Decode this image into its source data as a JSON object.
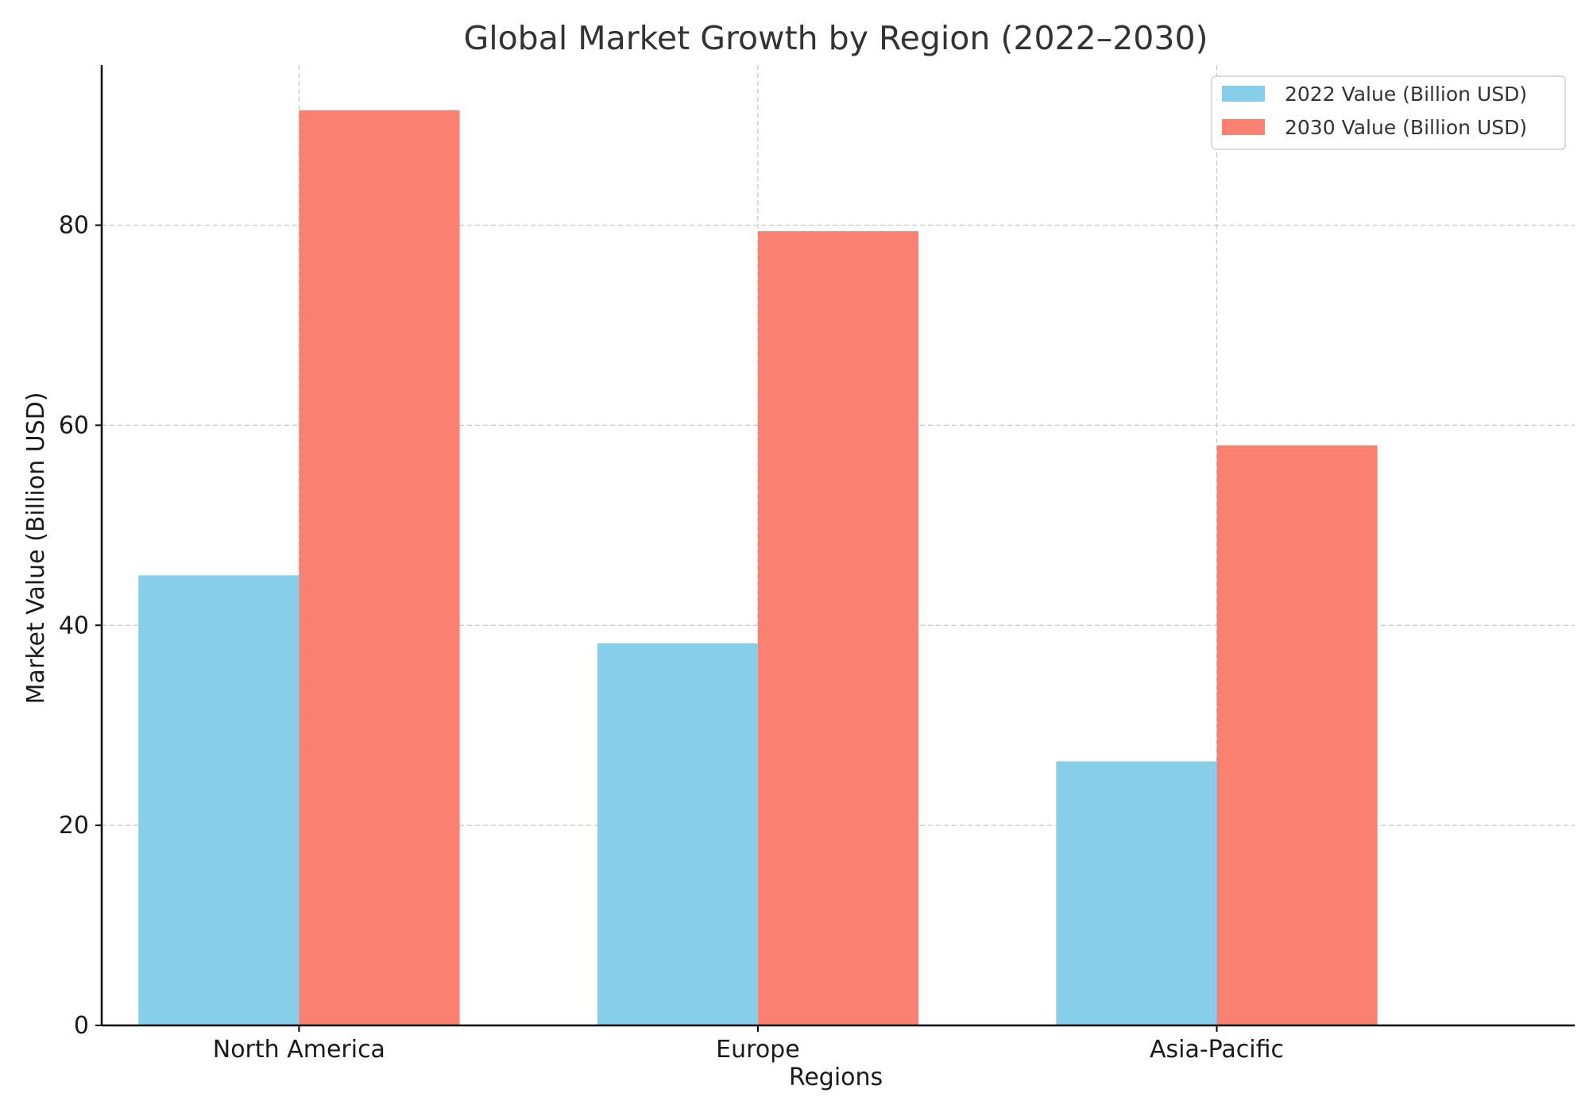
{
  "chart_data": {
    "type": "bar",
    "title": "Global Market Growth by Region (2022–2030)",
    "xlabel": "Regions",
    "ylabel": "Market Value (Billion USD)",
    "categories": [
      "North America",
      "Europe",
      "Asia-Pacific"
    ],
    "series": [
      {
        "name": "2022 Value (Billion USD)",
        "values": [
          45.0,
          38.2,
          26.4
        ],
        "color": "#87CEEB"
      },
      {
        "name": "2030 Value (Billion USD)",
        "values": [
          91.5,
          79.4,
          58.0
        ],
        "color": "#FA8072"
      }
    ],
    "ylim": [
      0,
      96
    ],
    "yticks": [
      0,
      20,
      40,
      60,
      80
    ],
    "grid": true,
    "legend": "top-right"
  }
}
